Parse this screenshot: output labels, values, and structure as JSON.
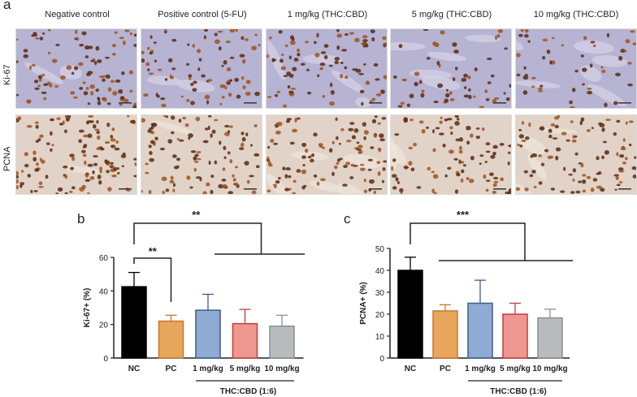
{
  "figure": {
    "panel_a": "a",
    "panel_b": "b",
    "panel_c": "c",
    "column_titles": [
      "Negative control",
      "Positive control (5-FU)",
      "1 mg/kg (THC:CBD)",
      "5 mg/kg (THC:CBD)",
      "10 mg/kg (THC:CBD)"
    ],
    "row_labels": [
      "Ki-67",
      "PCNA"
    ],
    "stain_colors": {
      "ki67_background": "#b7b3d2",
      "pcna_background": "#e2d3c8",
      "nuclei": "#5b2a10",
      "nuclei_light": "#a0521c"
    }
  },
  "chart_data": [
    {
      "type": "bar",
      "categories": [
        "NC",
        "PC",
        "1 mg/kg",
        "5 mg/kg",
        "10 mg/kg"
      ],
      "values": [
        42.5,
        22,
        28.5,
        20.5,
        19
      ],
      "errors": [
        8.5,
        3.5,
        9.5,
        8.5,
        6.5
      ],
      "colors": [
        "#000000",
        "#e8a55c",
        "#8faad3",
        "#ee9791",
        "#b8bcbe"
      ],
      "edge_colors": [
        "#000000",
        "#c47a2c",
        "#3c5c8e",
        "#c13f3d",
        "#8a8f93"
      ],
      "xlabel": "",
      "ylabel": "Ki-67+ (%)",
      "yticks": [
        0,
        20,
        40,
        60
      ],
      "ylim": [
        0,
        60
      ],
      "group_label": "THC:CBD (1:6)",
      "significance": [
        {
          "label": "**",
          "comparison": "NC vs PC"
        },
        {
          "label": "**",
          "comparison": "NC vs THC:CBD groups"
        }
      ]
    },
    {
      "type": "bar",
      "categories": [
        "NC",
        "PC",
        "1 mg/kg",
        "5 mg/kg",
        "10 mg/kg"
      ],
      "values": [
        40,
        21.5,
        25,
        20,
        18.3
      ],
      "errors": [
        6,
        2.8,
        10.5,
        5,
        4
      ],
      "colors": [
        "#000000",
        "#e8a55c",
        "#8faad3",
        "#ee9791",
        "#b8bcbe"
      ],
      "edge_colors": [
        "#000000",
        "#c47a2c",
        "#3c5c8e",
        "#c13f3d",
        "#8a8f93"
      ],
      "xlabel": "",
      "ylabel": "PCNA+ (%)",
      "yticks": [
        0,
        10,
        20,
        30,
        40,
        50
      ],
      "ylim": [
        0,
        50
      ],
      "group_label": "THC:CBD (1:6)",
      "significance": [
        {
          "label": "***",
          "comparison": "NC vs all treatment groups"
        }
      ]
    }
  ]
}
